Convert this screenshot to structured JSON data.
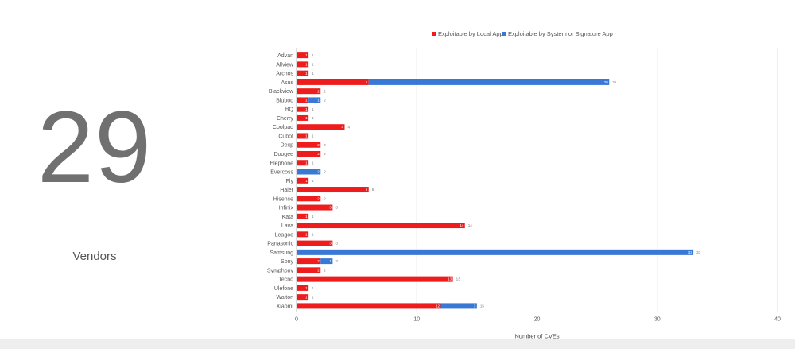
{
  "summary": {
    "count": "29",
    "caption": "Vendors"
  },
  "colors": {
    "local": "#ee1c1c",
    "system": "#3a78d6",
    "grid": "#dddddd",
    "text": "#555555"
  },
  "chart_data": {
    "type": "bar",
    "orientation": "horizontal",
    "stacked": true,
    "xlabel": "Number of CVEs",
    "ylabel": "",
    "xlim": [
      0,
      40
    ],
    "xticks": [
      0,
      10,
      20,
      30,
      40
    ],
    "grid": true,
    "legend_position": "top-right",
    "categories": [
      "Advan",
      "Allview",
      "Archos",
      "Asus",
      "Blackview",
      "Bluboo",
      "BQ",
      "Cherry",
      "Coolpad",
      "Cubot",
      "Dexp",
      "Doogee",
      "Elephone",
      "Evercoss",
      "Fly",
      "Haier",
      "Hisense",
      "Infinix",
      "Kata",
      "Lava",
      "Leagoo",
      "Panasonic",
      "Samsung",
      "Sony",
      "Symphony",
      "Tecno",
      "Ulefone",
      "Walton",
      "Xiaomi"
    ],
    "series": [
      {
        "name": "Exploitable by Local App",
        "color": "#ee1c1c",
        "values": [
          1,
          1,
          1,
          6,
          2,
          1,
          1,
          1,
          4,
          1,
          2,
          2,
          1,
          0,
          1,
          6,
          2,
          3,
          1,
          14,
          1,
          3,
          0,
          2,
          2,
          13,
          1,
          1,
          12
        ]
      },
      {
        "name": "Exploitable by System or Signature App",
        "color": "#3a78d6",
        "values": [
          0,
          0,
          0,
          20,
          0,
          1,
          0,
          0,
          0,
          0,
          0,
          0,
          0,
          2,
          0,
          0,
          0,
          0,
          0,
          0,
          0,
          0,
          33,
          1,
          0,
          0,
          0,
          0,
          3
        ]
      }
    ],
    "totals": [
      1,
      1,
      1,
      26,
      2,
      2,
      1,
      1,
      4,
      1,
      2,
      2,
      1,
      2,
      1,
      6,
      2,
      3,
      1,
      14,
      1,
      3,
      33,
      3,
      2,
      13,
      1,
      1,
      15
    ]
  }
}
